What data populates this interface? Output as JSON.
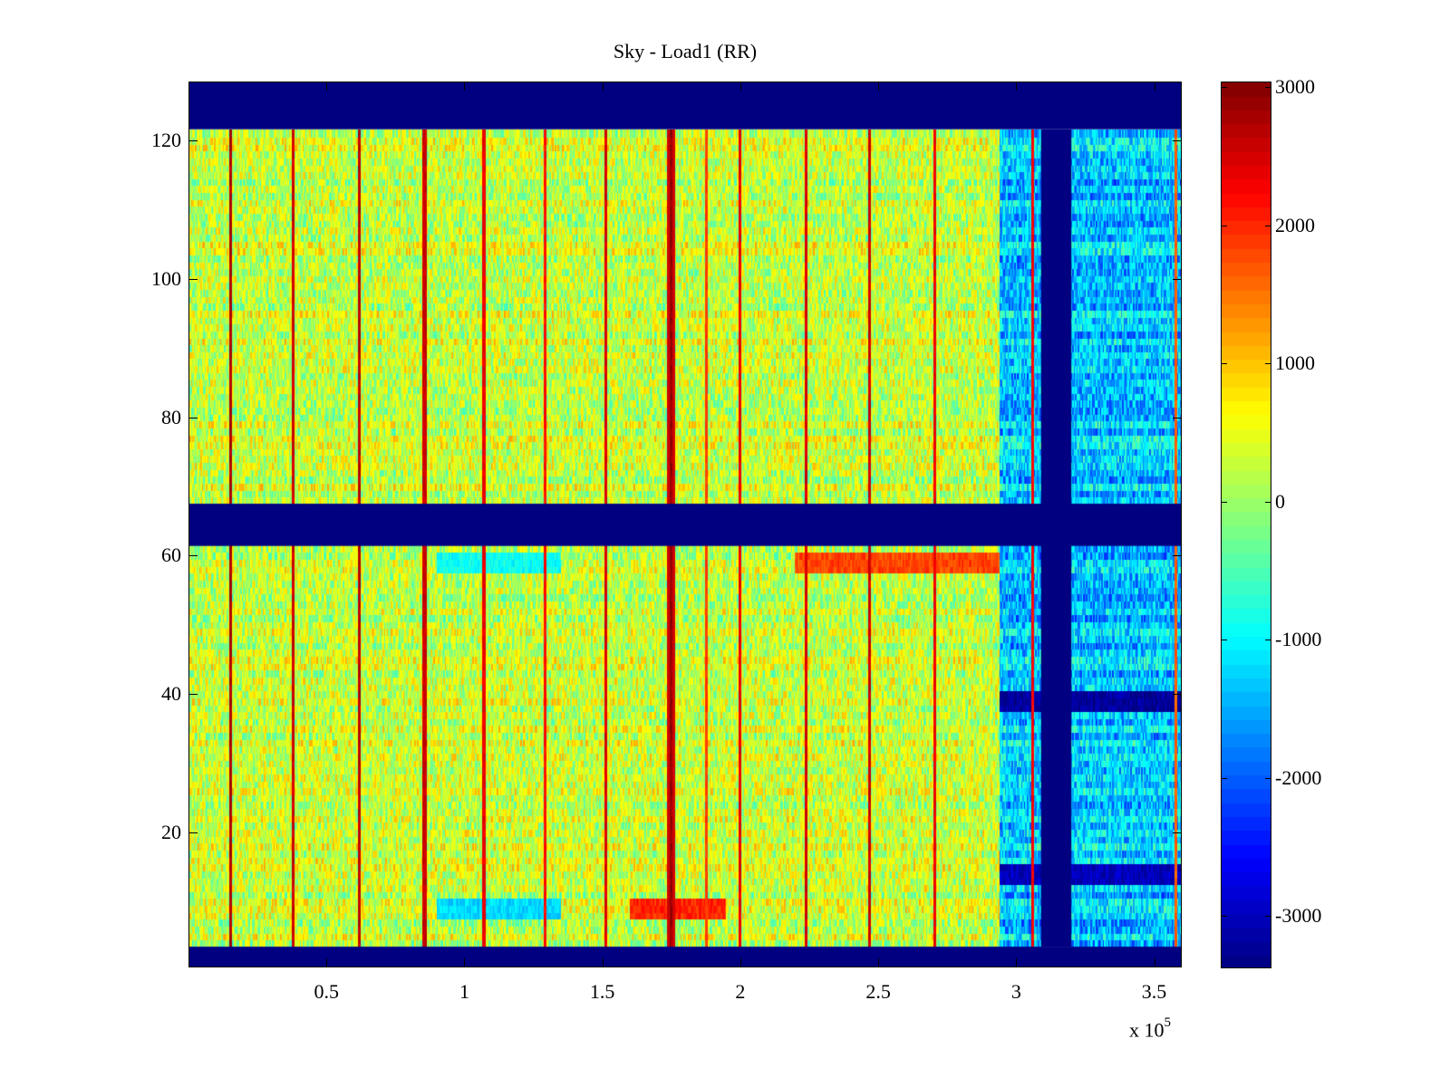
{
  "chart_data": {
    "type": "heatmap",
    "title": "Sky - Load1 (RR)",
    "xlabel": "",
    "ylabel": "",
    "x_multiplier_label": "x 10",
    "x_multiplier_exponent": "5",
    "xlim": [
      0,
      3.6
    ],
    "ylim": [
      0.5,
      128.5
    ],
    "x_ticks": [
      0.5,
      1,
      1.5,
      2,
      2.5,
      3,
      3.5
    ],
    "x_tick_labels": [
      "0.5",
      "1",
      "1.5",
      "2",
      "2.5",
      "3",
      "3.5"
    ],
    "y_ticks": [
      20,
      40,
      60,
      80,
      100,
      120
    ],
    "y_tick_labels": [
      "20",
      "40",
      "60",
      "80",
      "100",
      "120"
    ],
    "colormap": "jet",
    "clim": [
      -3380,
      3040
    ],
    "colorbar": {
      "ticks": [
        3000,
        2000,
        1000,
        0,
        -1000,
        -2000,
        -3000
      ],
      "tick_labels": [
        "3000",
        "2000",
        "1000",
        "0",
        "-1000",
        "-2000",
        "-3000"
      ]
    },
    "background_mean": 300,
    "masked_rows": [
      {
        "from": 121.6,
        "to": 128.5
      },
      {
        "from": 61.4,
        "to": 67.5
      },
      {
        "from": 0.5,
        "to": 3.5
      }
    ],
    "masked_columns": [
      {
        "from": 3.09,
        "to": 3.2
      }
    ],
    "low_region": {
      "x_from": 2.94,
      "x_to": 3.6,
      "mean": -1300
    },
    "vertical_streaks": [
      {
        "x": 0.154,
        "value": 2900
      },
      {
        "x": 0.379,
        "value": 2700
      },
      {
        "x": 0.62,
        "value": 2800
      },
      {
        "x": 0.858,
        "value": 2700
      },
      {
        "x": 1.073,
        "value": 2500
      },
      {
        "x": 1.294,
        "value": 2300
      },
      {
        "x": 1.515,
        "value": 2600
      },
      {
        "x": 1.75,
        "value": 3040
      },
      {
        "x": 1.88,
        "value": 2000
      },
      {
        "x": 2.0,
        "value": 2500
      },
      {
        "x": 2.24,
        "value": 2600
      },
      {
        "x": 2.47,
        "value": 2700
      },
      {
        "x": 2.705,
        "value": 2500
      },
      {
        "x": 3.06,
        "value": 2400
      },
      {
        "x": 3.58,
        "value": 1800
      }
    ],
    "horizontal_features": [
      {
        "y": 39,
        "x_from": 2.94,
        "x_to": 3.6,
        "value": -3200
      },
      {
        "y": 14,
        "x_from": 2.94,
        "x_to": 3.6,
        "value": -3000
      },
      {
        "y": 59,
        "x_from": 2.2,
        "x_to": 2.94,
        "value": 1800
      },
      {
        "y": 9,
        "x_from": 1.6,
        "x_to": 1.95,
        "value": 2000
      },
      {
        "y": 9,
        "x_from": 0.9,
        "x_to": 1.35,
        "value": -1200
      },
      {
        "y": 59,
        "x_from": 0.9,
        "x_to": 1.35,
        "value": -900
      }
    ]
  }
}
